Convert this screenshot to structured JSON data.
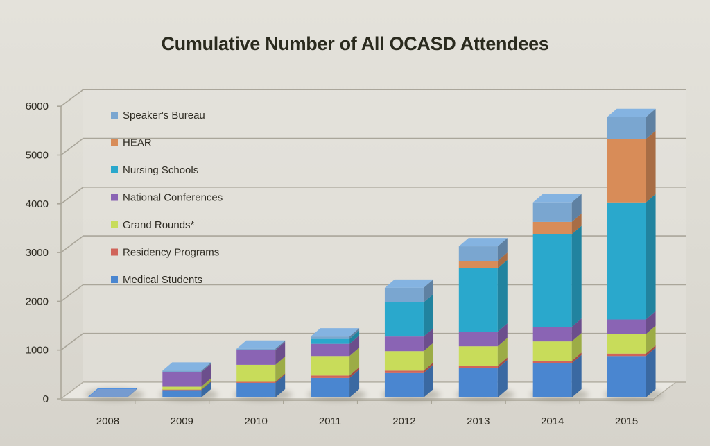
{
  "chart_data": {
    "type": "bar",
    "stacked": true,
    "style": "3d",
    "title": "Cumulative Number of All OCASD Attendees",
    "xlabel": "",
    "ylabel": "",
    "ylim": [
      0,
      6000
    ],
    "yticks": [
      "0",
      "1000",
      "2000",
      "3000",
      "4000",
      "5000",
      "6000"
    ],
    "grid": true,
    "legend_position": "top-left",
    "categories": [
      "2008",
      "2009",
      "2010",
      "2011",
      "2012",
      "2013",
      "2014",
      "2015"
    ],
    "series": [
      {
        "name": "Medical Students",
        "color": "#4a86d0",
        "values": [
          20,
          150,
          300,
          400,
          500,
          600,
          700,
          850
        ]
      },
      {
        "name": "Residency Programs",
        "color": "#d0645a",
        "values": [
          0,
          10,
          20,
          50,
          50,
          50,
          50,
          50
        ]
      },
      {
        "name": "Grand Rounds*",
        "color": "#c8dc5a",
        "values": [
          0,
          60,
          350,
          400,
          400,
          400,
          400,
          400
        ]
      },
      {
        "name": "National Conferences",
        "color": "#8a64b4",
        "values": [
          0,
          300,
          300,
          250,
          300,
          300,
          300,
          300
        ]
      },
      {
        "name": "Nursing Schools",
        "color": "#2aa8cc",
        "values": [
          0,
          0,
          0,
          100,
          700,
          1300,
          1900,
          2400
        ]
      },
      {
        "name": "HEAR",
        "color": "#d88c58",
        "values": [
          0,
          0,
          0,
          0,
          0,
          150,
          250,
          1300
        ]
      },
      {
        "name": "Speaker's Bureau",
        "color": "#7aa6d0",
        "values": [
          0,
          30,
          30,
          50,
          300,
          300,
          400,
          450
        ]
      }
    ],
    "legend_order": [
      "Speaker's Bureau",
      "HEAR",
      "Nursing Schools",
      "National Conferences",
      "Grand Rounds*",
      "Residency Programs",
      "Medical Students"
    ]
  }
}
